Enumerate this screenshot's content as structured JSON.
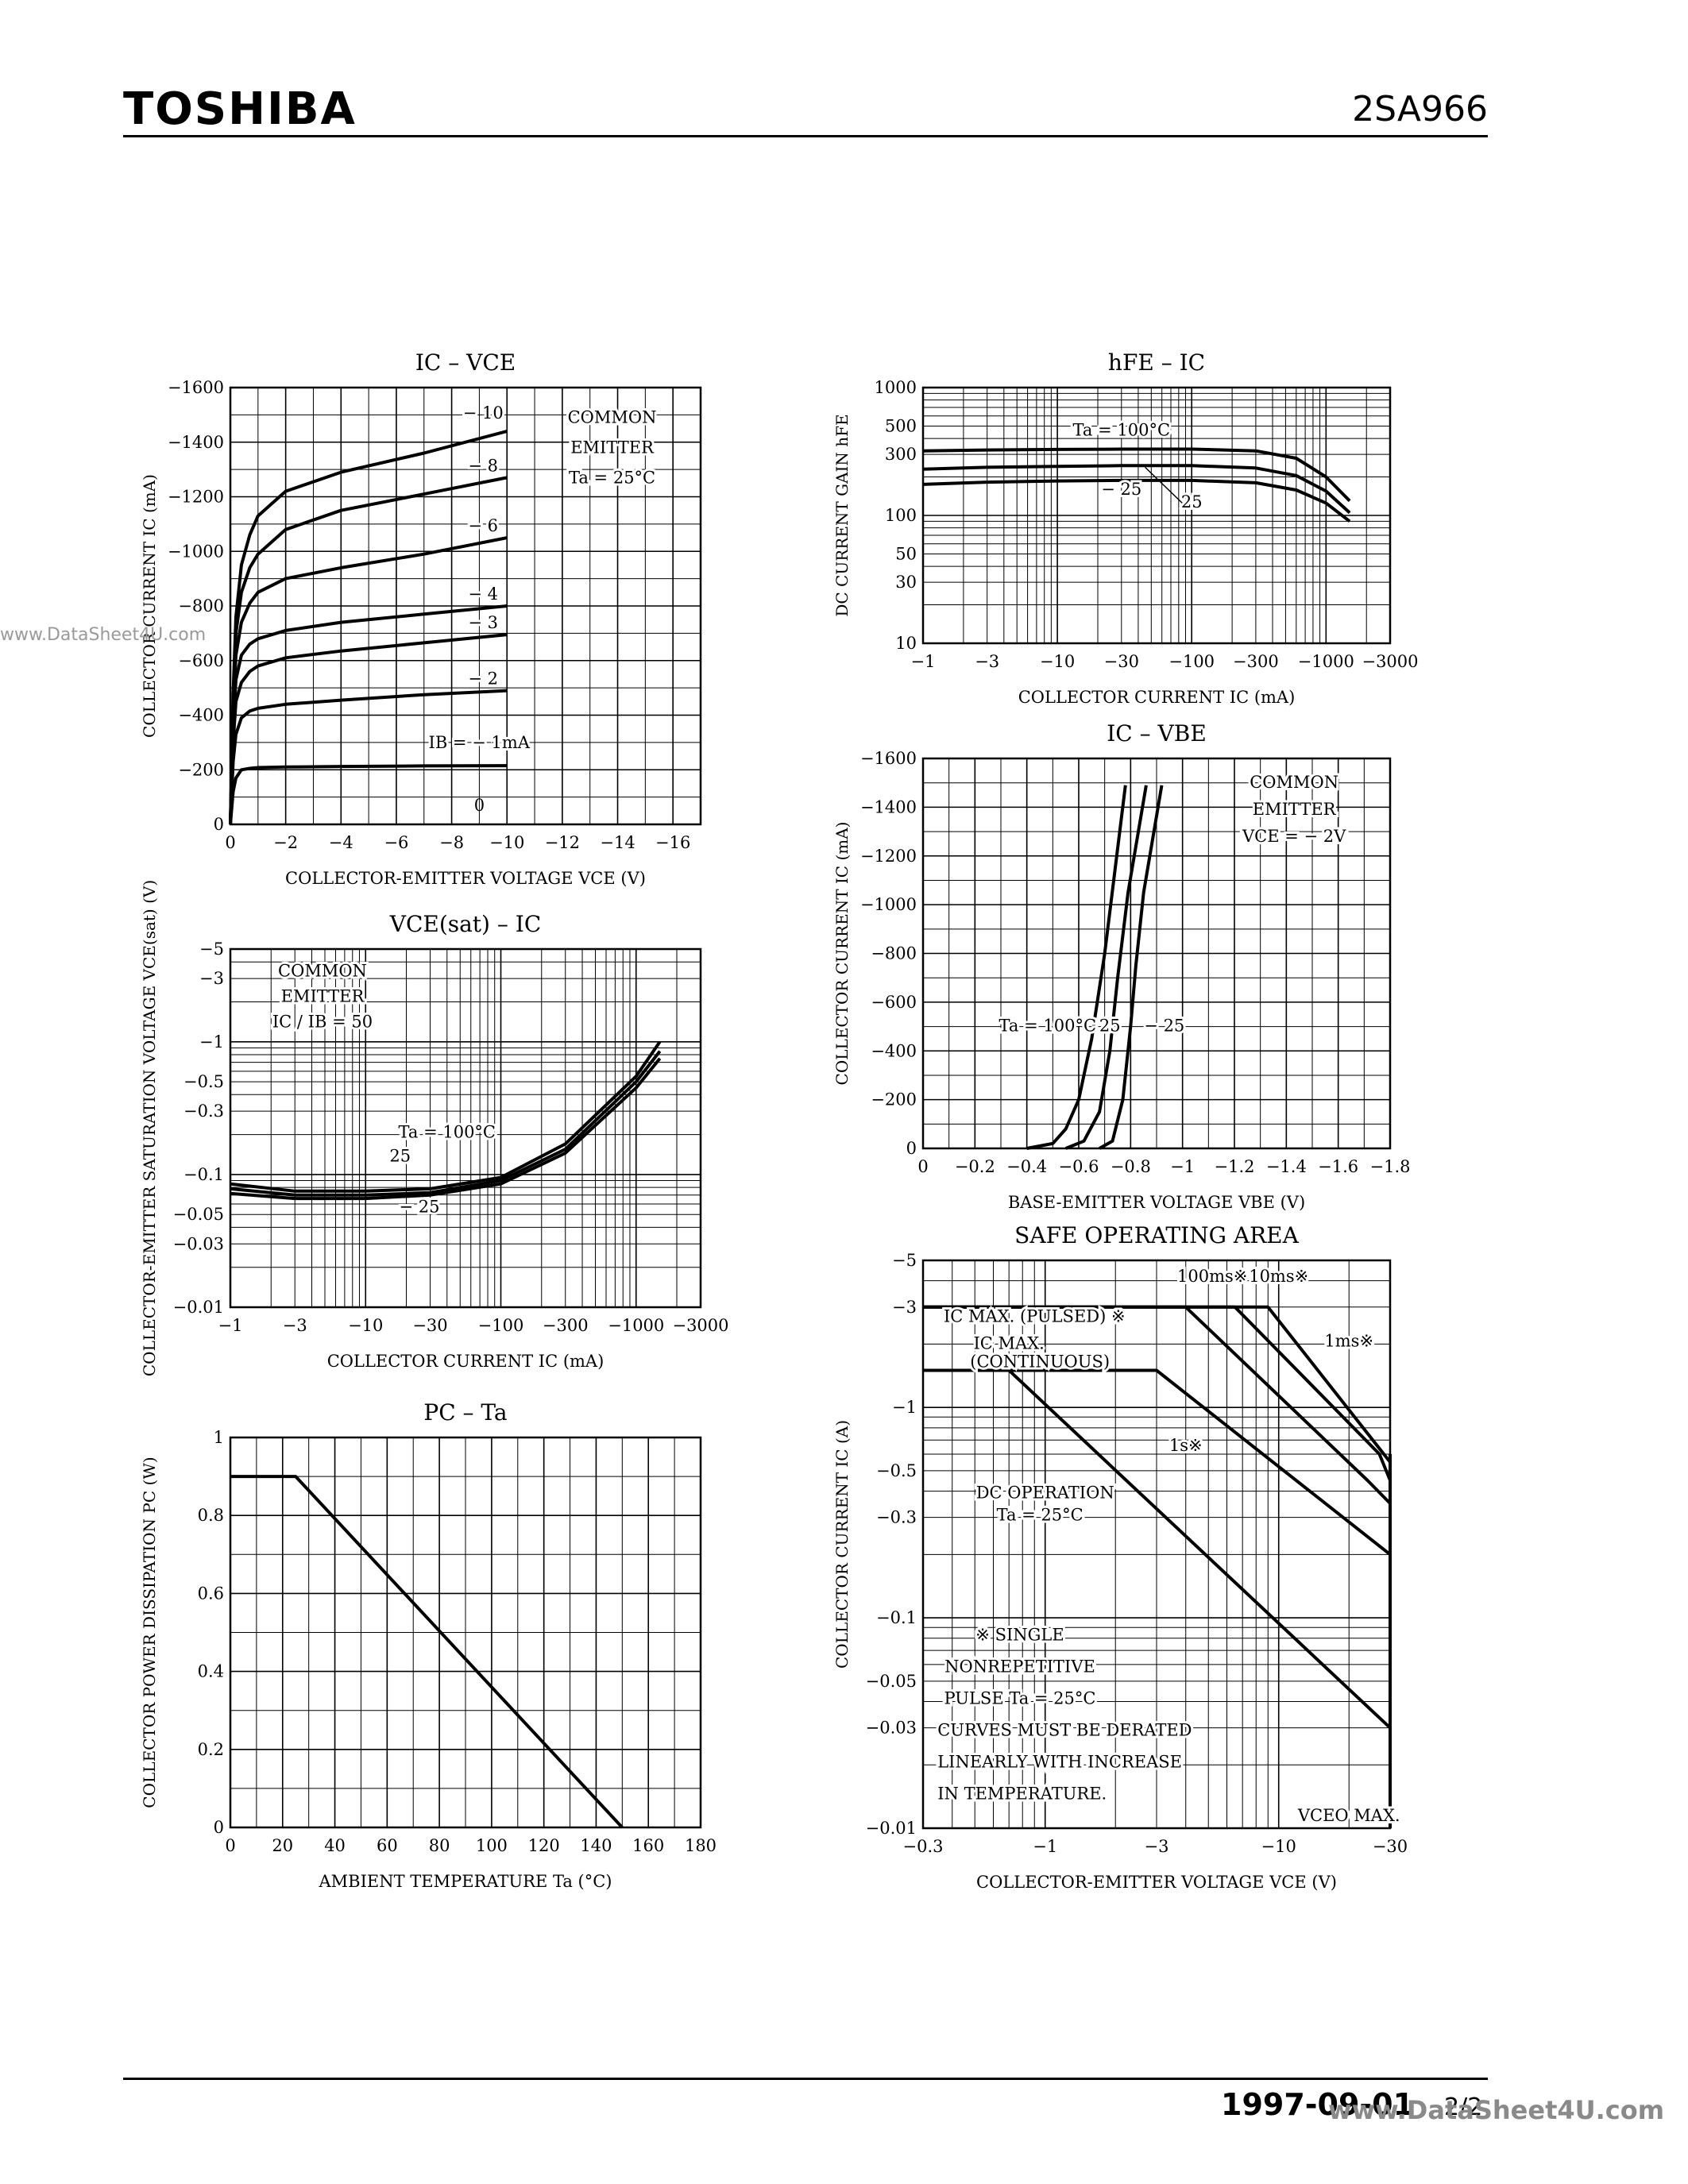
{
  "header": {
    "brand": "TOSHIBA",
    "part": "2SA966"
  },
  "footer": {
    "date": "1997-09-01",
    "page": "2/2"
  },
  "watermarks": {
    "left": "www.DataSheet4U.com",
    "right": "www.DataSheet4U.com"
  },
  "chart_data": [
    {
      "id": "ic-vce",
      "type": "line",
      "title": "IC – VCE",
      "xlabel": "COLLECTOR-EMITTER VOLTAGE  VCE  (V)",
      "ylabel": "COLLECTOR CURRENT  IC  (mA)",
      "xlim": [
        0,
        -17
      ],
      "ylim": [
        0,
        -1600
      ],
      "xticks": [
        0,
        -2,
        -4,
        -6,
        -8,
        -10,
        -12,
        -14,
        -16
      ],
      "yticks": [
        0,
        -200,
        -400,
        -600,
        -800,
        -1000,
        -1200,
        -1400,
        -1600
      ],
      "annotation": [
        "COMMON",
        "EMITTER",
        "Ta = 25°C"
      ],
      "series": [
        {
          "name": "IB = −1mA",
          "label": "IB = − 1mA",
          "x": [
            0,
            -0.1,
            -0.2,
            -0.4,
            -0.7,
            -1,
            -2,
            -4,
            -7,
            -10
          ],
          "y": [
            0,
            -120,
            -170,
            -200,
            -205,
            -208,
            -210,
            -212,
            -214,
            -215
          ]
        },
        {
          "name": "IB = −2mA",
          "label": "− 2",
          "x": [
            0,
            -0.1,
            -0.2,
            -0.4,
            -0.7,
            -1,
            -2,
            -4,
            -7,
            -10
          ],
          "y": [
            0,
            -230,
            -330,
            -390,
            -415,
            -425,
            -440,
            -455,
            -475,
            -490
          ]
        },
        {
          "name": "IB = −3mA",
          "label": "− 3",
          "x": [
            0,
            -0.1,
            -0.2,
            -0.4,
            -0.7,
            -1,
            -2,
            -4,
            -7,
            -10
          ],
          "y": [
            0,
            -300,
            -450,
            -520,
            -560,
            -580,
            -610,
            -635,
            -665,
            -695
          ]
        },
        {
          "name": "IB = −4mA",
          "label": "− 4",
          "x": [
            0,
            -0.1,
            -0.2,
            -0.4,
            -0.7,
            -1,
            -2,
            -4,
            -7,
            -10
          ],
          "y": [
            0,
            -350,
            -530,
            -620,
            -660,
            -680,
            -710,
            -740,
            -770,
            -800
          ]
        },
        {
          "name": "IB = −6mA",
          "label": "− 6",
          "x": [
            0,
            -0.1,
            -0.2,
            -0.4,
            -0.7,
            -1,
            -2,
            -4,
            -7,
            -10
          ],
          "y": [
            0,
            -400,
            -620,
            -740,
            -810,
            -850,
            -900,
            -940,
            -990,
            -1050
          ]
        },
        {
          "name": "IB = −8mA",
          "label": "− 8",
          "x": [
            0,
            -0.1,
            -0.2,
            -0.4,
            -0.7,
            -1,
            -2,
            -4,
            -7,
            -10
          ],
          "y": [
            0,
            -450,
            -700,
            -850,
            -940,
            -990,
            -1080,
            -1150,
            -1210,
            -1270
          ]
        },
        {
          "name": "IB = −10mA",
          "label": "− 10",
          "x": [
            0,
            -0.1,
            -0.2,
            -0.4,
            -0.7,
            -1,
            -2,
            -4,
            -7,
            -10
          ],
          "y": [
            0,
            -480,
            -760,
            -950,
            -1060,
            -1130,
            -1220,
            -1290,
            -1360,
            -1440
          ]
        }
      ],
      "extra_labels": [
        "0"
      ]
    },
    {
      "id": "hfe-ic",
      "type": "line",
      "title": "hFE – IC",
      "xlabel": "COLLECTOR CURRENT  IC  (mA)",
      "ylabel": "DC CURRENT GAIN  hFE",
      "xscale": "log",
      "yscale": "log",
      "xlim": [
        -1,
        -3000
      ],
      "ylim": [
        10,
        1000
      ],
      "xticks": [
        -1,
        -3,
        -10,
        -30,
        -100,
        -300,
        -1000,
        -3000
      ],
      "yticks": [
        10,
        30,
        50,
        100,
        300,
        500,
        1000
      ],
      "series": [
        {
          "name": "Ta = 100°C",
          "label": "Ta = 100°C",
          "x": [
            -1,
            -3,
            -10,
            -30,
            -100,
            -300,
            -600,
            -1000,
            -1500
          ],
          "y": [
            320,
            325,
            328,
            330,
            330,
            320,
            280,
            200,
            130
          ]
        },
        {
          "name": "Ta = 25°C",
          "label": "25",
          "x": [
            -1,
            -3,
            -10,
            -30,
            -100,
            -300,
            -600,
            -1000,
            -1500
          ],
          "y": [
            230,
            238,
            242,
            245,
            245,
            235,
            205,
            155,
            105
          ]
        },
        {
          "name": "Ta = −25°C",
          "label": "− 25",
          "x": [
            -1,
            -3,
            -10,
            -30,
            -100,
            -300,
            -600,
            -1000,
            -1500
          ],
          "y": [
            175,
            182,
            186,
            188,
            188,
            180,
            158,
            125,
            90
          ]
        }
      ]
    },
    {
      "id": "ic-vbe",
      "type": "line",
      "title": "IC – VBE",
      "xlabel": "BASE-EMITTER VOLTAGE  VBE  (V)",
      "ylabel": "COLLECTOR CURRENT  IC  (mA)",
      "xlim": [
        0,
        -1.8
      ],
      "ylim": [
        0,
        -1600
      ],
      "xticks": [
        0,
        -0.2,
        -0.4,
        -0.6,
        -0.8,
        -1.0,
        -1.2,
        -1.4,
        -1.6,
        -1.8
      ],
      "yticks": [
        0,
        -200,
        -400,
        -600,
        -800,
        -1000,
        -1200,
        -1400,
        -1600
      ],
      "annotation": [
        "COMMON",
        "EMITTER",
        "VCE = − 2V"
      ],
      "series": [
        {
          "name": "Ta = 100°C",
          "label": "Ta = 100°C",
          "x": [
            -0.4,
            -0.5,
            -0.55,
            -0.6,
            -0.65,
            -0.7,
            -0.78
          ],
          "y": [
            0,
            -20,
            -80,
            -200,
            -450,
            -800,
            -1490
          ]
        },
        {
          "name": "Ta = 25°C",
          "label": "25",
          "x": [
            -0.55,
            -0.62,
            -0.68,
            -0.72,
            -0.75,
            -0.79,
            -0.86
          ],
          "y": [
            0,
            -30,
            -150,
            -400,
            -700,
            -1050,
            -1490
          ]
        },
        {
          "name": "Ta = −25°C",
          "label": "− 25",
          "x": [
            -0.68,
            -0.73,
            -0.77,
            -0.8,
            -0.82,
            -0.85,
            -0.92
          ],
          "y": [
            0,
            -30,
            -200,
            -500,
            -750,
            -1050,
            -1490
          ]
        }
      ]
    },
    {
      "id": "vcesat-ic",
      "type": "line",
      "title": "VCE(sat) – IC",
      "xlabel": "COLLECTOR CURRENT  IC  (mA)",
      "ylabel": "COLLECTOR-EMITTER SATURATION VOLTAGE  VCE(sat)  (V)",
      "xscale": "log",
      "yscale": "log",
      "xlim": [
        -1,
        -3000
      ],
      "ylim": [
        -0.01,
        -5
      ],
      "xticks": [
        -1,
        -3,
        -10,
        -30,
        -100,
        -300,
        -1000,
        -3000
      ],
      "yticks": [
        -0.01,
        -0.03,
        -0.05,
        -0.1,
        -0.3,
        -0.5,
        -1,
        -3,
        -5
      ],
      "annotation": [
        "COMMON",
        "EMITTER",
        "IC / IB = 50"
      ],
      "series": [
        {
          "name": "Ta = 100°C",
          "label": "Ta = 100°C",
          "x": [
            -1,
            -3,
            -10,
            -30,
            -100,
            -300,
            -1000,
            -1500
          ],
          "y": [
            -0.085,
            -0.075,
            -0.075,
            -0.078,
            -0.095,
            -0.17,
            -0.55,
            -1.0
          ]
        },
        {
          "name": "Ta = 25°C",
          "label": "25",
          "x": [
            -1,
            -3,
            -10,
            -30,
            -100,
            -300,
            -1000,
            -1500
          ],
          "y": [
            -0.078,
            -0.07,
            -0.07,
            -0.073,
            -0.09,
            -0.155,
            -0.5,
            -0.85
          ]
        },
        {
          "name": "Ta = −25°C",
          "label": "− 25",
          "x": [
            -1,
            -3,
            -10,
            -30,
            -100,
            -300,
            -1000,
            -1500
          ],
          "y": [
            -0.072,
            -0.066,
            -0.066,
            -0.07,
            -0.085,
            -0.145,
            -0.45,
            -0.75
          ]
        }
      ]
    },
    {
      "id": "safe-operating-area",
      "type": "line",
      "title": "SAFE OPERATING AREA",
      "xlabel": "COLLECTOR-EMITTER VOLTAGE  VCE  (V)",
      "ylabel": "COLLECTOR CURRENT  IC  (A)",
      "xscale": "log",
      "yscale": "log",
      "xlim": [
        -0.3,
        -30
      ],
      "ylim": [
        -0.01,
        -5
      ],
      "xticks": [
        -0.3,
        -1,
        -3,
        -10,
        -30
      ],
      "yticks": [
        -0.01,
        -0.03,
        -0.05,
        -0.1,
        -0.3,
        -0.5,
        -1,
        -3,
        -5
      ],
      "labels": {
        "ic_max_pulsed": "IC MAX. (PULSED) ※",
        "ic_max_cont_1": "IC MAX.",
        "ic_max_cont_2": "(CONTINUOUS)",
        "dc_op_1": "DC OPERATION",
        "dc_op_2": "Ta = 25°C",
        "vceo_max": "VCEO MAX.",
        "note": [
          "※  SINGLE",
          "NONREPETITIVE",
          "PULSE Ta = 25°C",
          "CURVES MUST BE DERATED",
          "LINEARLY WITH INCREASE",
          "IN TEMPERATURE."
        ]
      },
      "series": [
        {
          "name": "100ms※",
          "label": "100ms※",
          "x": [
            -0.3,
            -4.0,
            -24,
            -30
          ],
          "y": [
            -3,
            -3,
            -0.45,
            -0.35
          ]
        },
        {
          "name": "10ms※",
          "label": "10ms※",
          "x": [
            -0.3,
            -6.5,
            -27,
            -30
          ],
          "y": [
            -3,
            -3,
            -0.6,
            -0.45
          ]
        },
        {
          "name": "1ms※",
          "label": "1ms※",
          "x": [
            -0.3,
            -9.0,
            -30
          ],
          "y": [
            -3,
            -3,
            -0.55
          ]
        },
        {
          "name": "1s※",
          "label": "1s※",
          "x": [
            -0.3,
            -3.0,
            -30
          ],
          "y": [
            -1.5,
            -1.5,
            -0.2
          ]
        },
        {
          "name": "DC operation",
          "label": "DC OPERATION",
          "x": [
            -0.3,
            -0.7,
            -30
          ],
          "y": [
            -1.5,
            -1.5,
            -0.03
          ]
        },
        {
          "name": "VCEO MAX.",
          "label": "VCEO MAX.",
          "x": [
            -30,
            -30
          ],
          "y": [
            -0.01,
            -0.6
          ]
        }
      ]
    },
    {
      "id": "pc-ta",
      "type": "line",
      "title": "PC – Ta",
      "xlabel": "AMBIENT TEMPERATURE  Ta  (°C)",
      "ylabel": "COLLECTOR POWER DISSIPATION  PC  (W)",
      "xlim": [
        0,
        180
      ],
      "ylim": [
        0,
        1.0
      ],
      "xticks": [
        0,
        20,
        40,
        60,
        80,
        100,
        120,
        140,
        160,
        180
      ],
      "yticks": [
        0,
        0.2,
        0.4,
        0.6,
        0.8,
        1.0
      ],
      "series": [
        {
          "name": "PC",
          "x": [
            0,
            25,
            150
          ],
          "y": [
            0.9,
            0.9,
            0
          ]
        }
      ]
    }
  ]
}
